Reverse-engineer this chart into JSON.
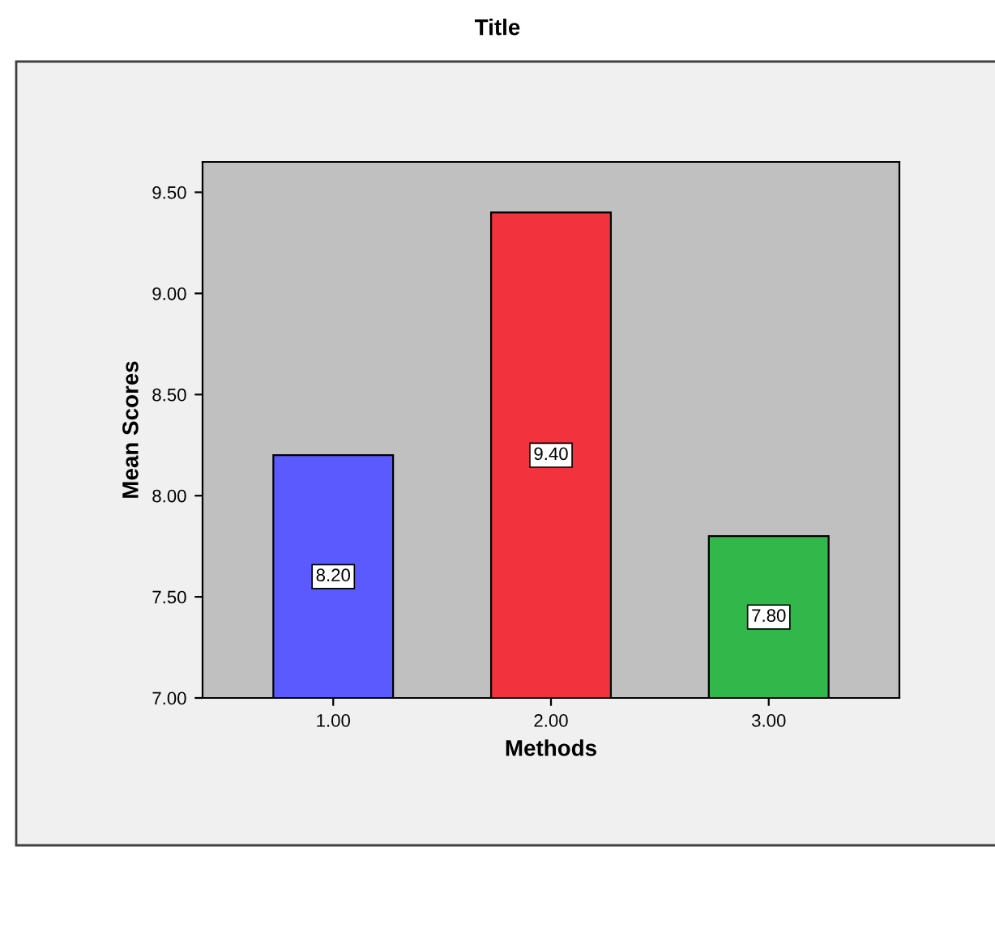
{
  "chart_data": {
    "type": "bar",
    "title": "Title",
    "xlabel": "Methods",
    "ylabel": "Mean Scores",
    "categories": [
      "1.00",
      "2.00",
      "3.00"
    ],
    "values": [
      8.2,
      9.4,
      7.8
    ],
    "colors": [
      "#5a5aff",
      "#f2323c",
      "#32b84a"
    ],
    "value_labels": [
      "8.20",
      "9.40",
      "7.80"
    ],
    "ylim": [
      7,
      9.65
    ],
    "yticks": [
      {
        "value": 7,
        "label": "7.00"
      },
      {
        "value": 7.5,
        "label": "7.50"
      },
      {
        "value": 8,
        "label": "8.00"
      },
      {
        "value": 8.5,
        "label": "8.50"
      },
      {
        "value": 9,
        "label": "9.00"
      },
      {
        "value": 9.5,
        "label": "9.50"
      }
    ],
    "grid": false
  }
}
